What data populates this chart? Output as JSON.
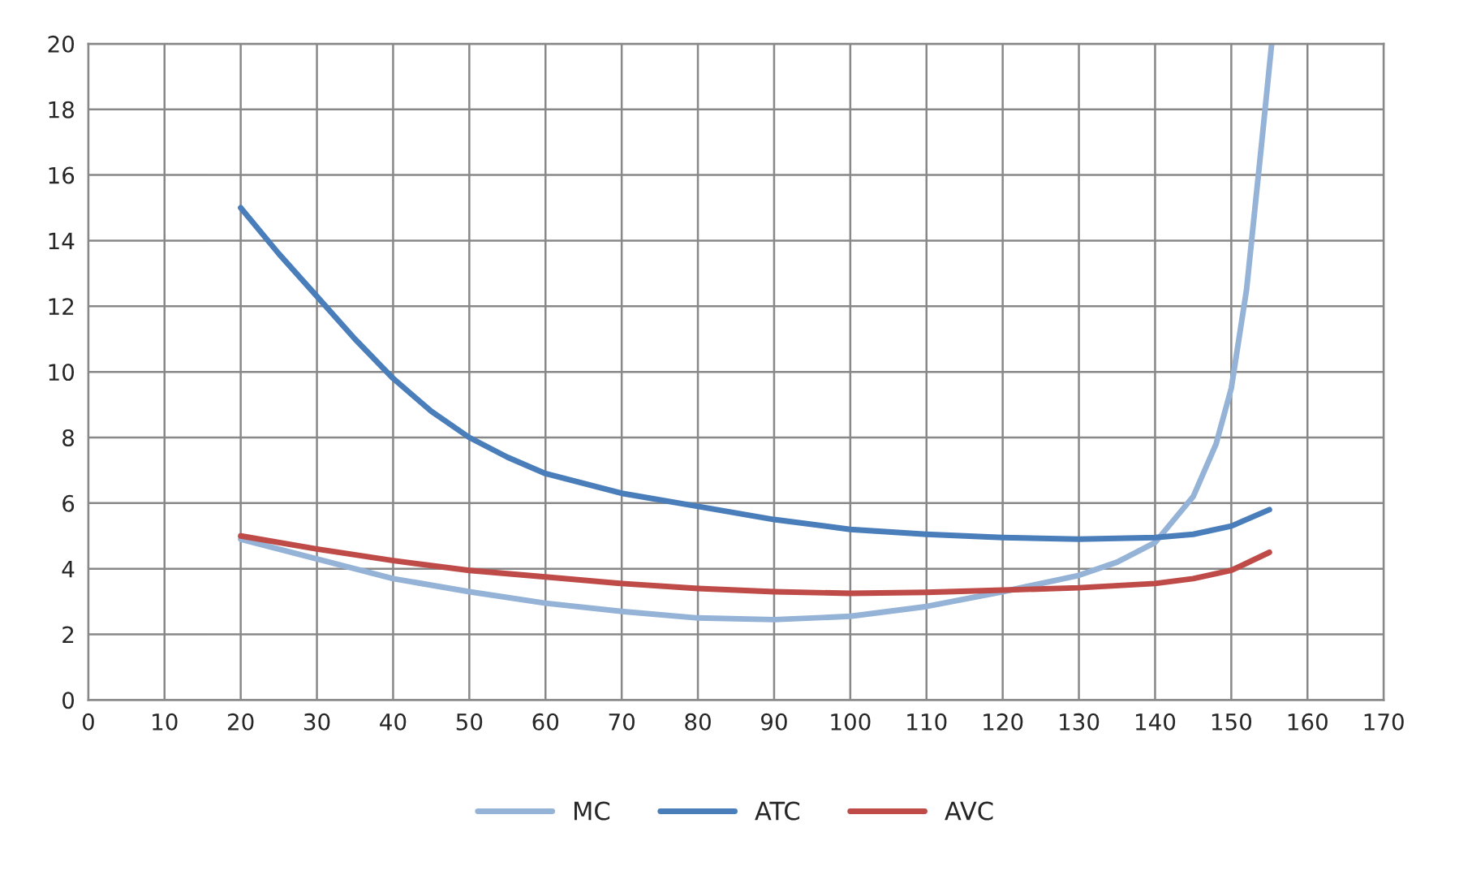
{
  "chart_data": {
    "type": "line",
    "xlim": [
      0,
      170
    ],
    "ylim": [
      0,
      20
    ],
    "xticks": [
      0,
      10,
      20,
      30,
      40,
      50,
      60,
      70,
      80,
      90,
      100,
      110,
      120,
      130,
      140,
      150,
      160,
      170
    ],
    "yticks": [
      0,
      2,
      4,
      6,
      8,
      10,
      12,
      14,
      16,
      18,
      20
    ],
    "grid": true,
    "legend": "bottom",
    "line_style": "solid",
    "marker": "none",
    "series": [
      {
        "name": "MC",
        "color": "#95b3d7",
        "x": [
          20,
          30,
          40,
          50,
          60,
          70,
          80,
          90,
          100,
          110,
          120,
          130,
          135,
          140,
          145,
          148,
          150,
          152,
          154,
          155.3
        ],
        "values": [
          4.9,
          4.3,
          3.7,
          3.3,
          2.95,
          2.7,
          2.5,
          2.45,
          2.55,
          2.85,
          3.3,
          3.8,
          4.2,
          4.8,
          6.2,
          7.8,
          9.5,
          12.5,
          17,
          20
        ]
      },
      {
        "name": "ATC",
        "color": "#4a7ebb",
        "x": [
          20,
          25,
          30,
          35,
          40,
          45,
          50,
          55,
          60,
          70,
          80,
          90,
          100,
          110,
          120,
          130,
          140,
          145,
          150,
          155
        ],
        "values": [
          15,
          13.6,
          12.3,
          11,
          9.8,
          8.8,
          8.0,
          7.4,
          6.9,
          6.3,
          5.9,
          5.5,
          5.2,
          5.05,
          4.95,
          4.9,
          4.95,
          5.05,
          5.3,
          5.8
        ]
      },
      {
        "name": "AVC",
        "color": "#be4b48",
        "x": [
          20,
          30,
          40,
          50,
          60,
          70,
          80,
          90,
          100,
          110,
          120,
          130,
          140,
          145,
          150,
          155
        ],
        "values": [
          5,
          4.6,
          4.25,
          3.95,
          3.75,
          3.55,
          3.4,
          3.3,
          3.25,
          3.28,
          3.35,
          3.42,
          3.55,
          3.7,
          3.95,
          4.5
        ]
      }
    ]
  }
}
